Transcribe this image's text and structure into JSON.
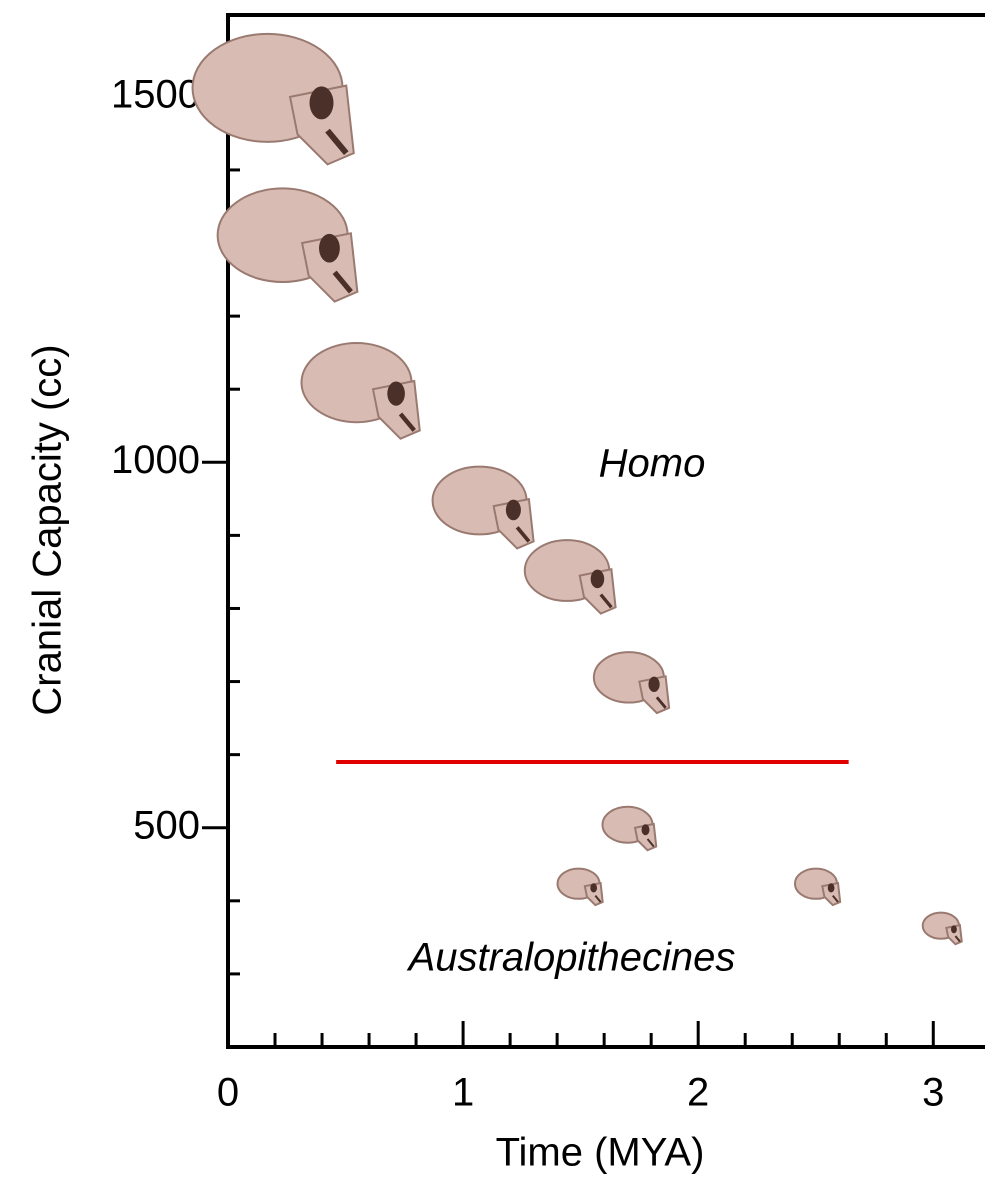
{
  "chart_data": {
    "type": "scatter",
    "x_label": "Time (MYA)",
    "y_label": "Cranial Capacity (cc)",
    "x": [
      0.2,
      0.26,
      0.57,
      1.09,
      1.46,
      1.72,
      1.71,
      1.5,
      2.51,
      3.04
    ],
    "values": [
      1500,
      1300,
      1100,
      940,
      845,
      700,
      500,
      420,
      420,
      363
    ],
    "color": "#d8bcb4",
    "xlim": [
      0,
      3.22
    ],
    "ylim": [
      200,
      1612
    ],
    "xticks": [
      0,
      1,
      2,
      3
    ],
    "x_minor_ticks": [
      0.2,
      0.4,
      0.6,
      0.8,
      1.2,
      1.4,
      1.6,
      1.8,
      2.2,
      2.4,
      2.6,
      2.8
    ],
    "yticks": [
      500,
      1000,
      1500
    ],
    "y_minor_ticks": [
      300,
      400,
      600,
      700,
      800,
      900,
      1100,
      1200,
      1300,
      1400
    ],
    "reference_line": {
      "y": 590,
      "xmin": 0.46,
      "xmax": 2.64,
      "color": "#e00000"
    },
    "annotations": [
      "Homo",
      "Australopithecines"
    ]
  }
}
